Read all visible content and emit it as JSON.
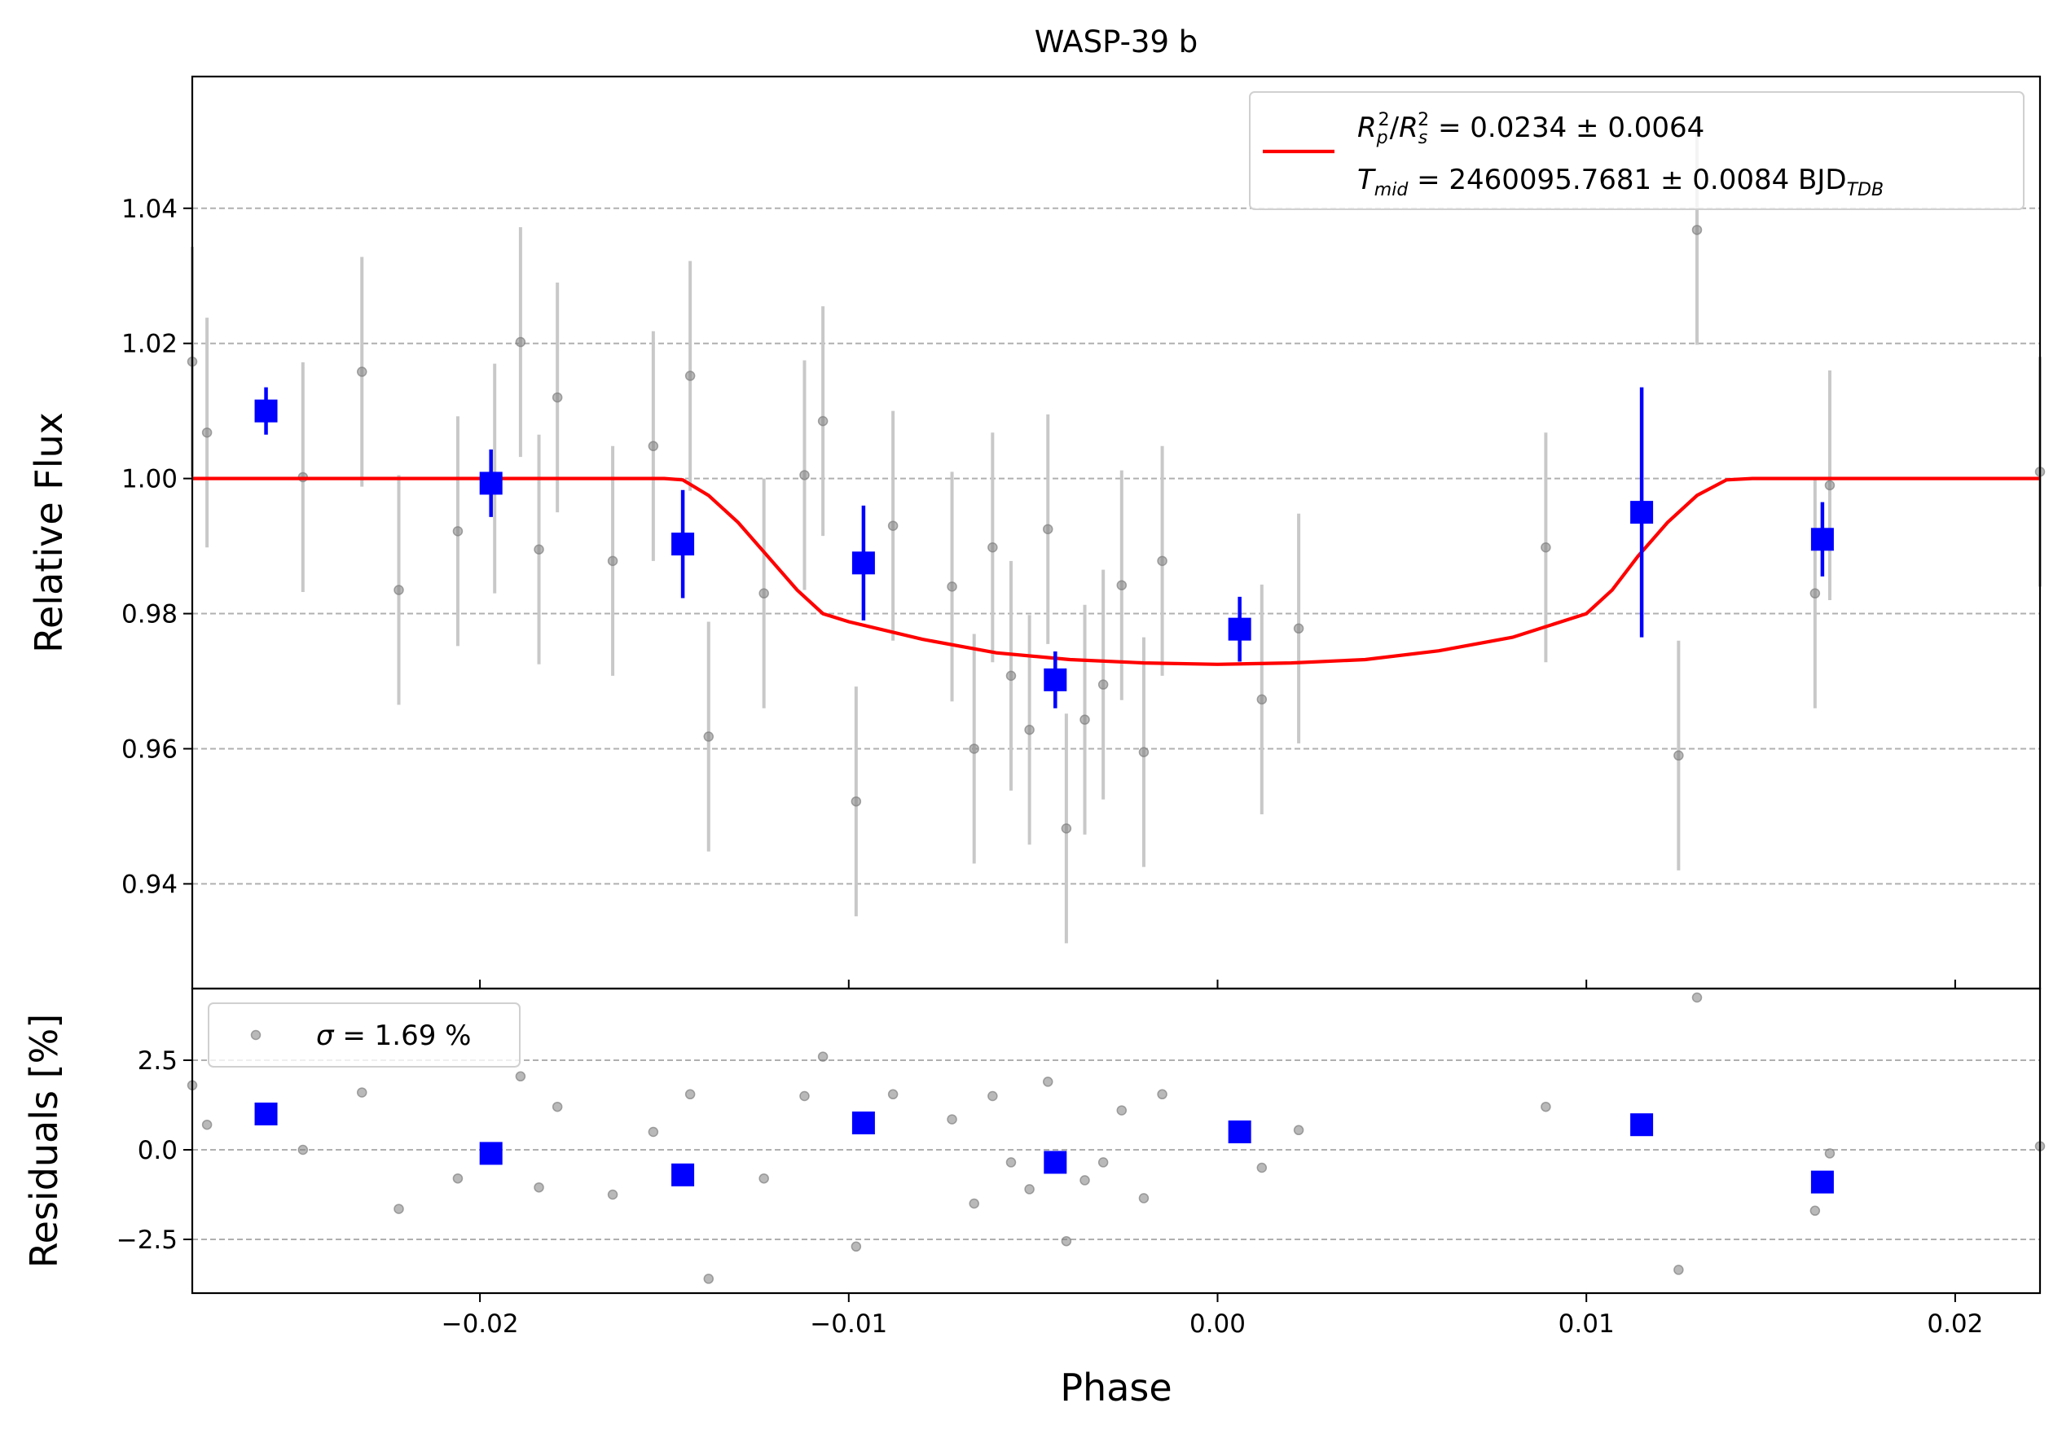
{
  "chart_data": {
    "type": "scatter",
    "title": "WASP-39 b",
    "xlabel": "Phase",
    "xlim": [
      -0.0278,
      0.0223
    ],
    "xticks": [
      -0.02,
      -0.01,
      0.0,
      0.01,
      0.02
    ],
    "xtick_labels": [
      "−0.02",
      "−0.01",
      "0.00",
      "0.01",
      "0.02"
    ],
    "colors": {
      "raw": "#808080",
      "raw_err": "#c8c8c8",
      "binned": "#0000ff",
      "model": "#ff0000",
      "grid": "#b0b0b0"
    },
    "panels": [
      {
        "name": "flux",
        "ylabel": "Relative Flux",
        "ylim": [
          0.9245,
          1.0595
        ],
        "yticks": [
          0.94,
          0.96,
          0.98,
          1.0,
          1.02,
          1.04
        ],
        "ytick_labels": [
          "0.94",
          "0.96",
          "0.98",
          "1.00",
          "1.02",
          "1.04"
        ],
        "grid": true,
        "legend": {
          "position": "top-right",
          "line1": {
            "r": "R",
            "p": "p",
            "sup1": "2",
            "slash": "/",
            "r2": "R",
            "s": "s",
            "sup2": "2",
            "val": " = 0.0234 ± 0.0064"
          },
          "line2": {
            "t": "T",
            "mid": "mid",
            "val": " = 2460095.7681 ± 0.0084 BJD",
            "tdb": "TDB"
          }
        },
        "model": {
          "name": "transit model",
          "x": [
            -0.0278,
            -0.015,
            -0.0145,
            -0.0138,
            -0.013,
            -0.0122,
            -0.0114,
            -0.0107,
            -0.01,
            -0.008,
            -0.006,
            -0.004,
            -0.002,
            0.0,
            0.002,
            0.004,
            0.006,
            0.008,
            0.01,
            0.0107,
            0.0114,
            0.0122,
            0.013,
            0.0138,
            0.0145,
            0.015,
            0.0223
          ],
          "y": [
            1.0,
            1.0,
            0.9998,
            0.9975,
            0.9935,
            0.9885,
            0.9835,
            0.98,
            0.9788,
            0.9762,
            0.9742,
            0.9732,
            0.9727,
            0.9725,
            0.9727,
            0.9732,
            0.9745,
            0.9765,
            0.98,
            0.9835,
            0.9885,
            0.9935,
            0.9975,
            0.9998,
            1.0,
            1.0,
            1.0
          ]
        },
        "raw": {
          "x": [
            -0.0278,
            -0.0274,
            -0.0248,
            -0.0232,
            -0.0222,
            -0.0206,
            -0.0196,
            -0.0189,
            -0.0184,
            -0.0179,
            -0.0164,
            -0.0153,
            -0.0143,
            -0.0138,
            -0.0123,
            -0.0112,
            -0.0107,
            -0.0098,
            -0.0088,
            -0.0072,
            -0.0066,
            -0.0061,
            -0.0056,
            -0.0051,
            -0.0046,
            -0.0041,
            -0.0036,
            -0.0031,
            -0.0026,
            -0.002,
            -0.0015,
            0.0012,
            0.0022,
            0.0089,
            0.0125,
            0.013,
            0.0162,
            0.0166,
            0.0223
          ],
          "y": [
            1.0173,
            1.0068,
            1.0002,
            1.0158,
            0.9835,
            0.9922,
            1.0,
            1.0202,
            0.9895,
            1.012,
            0.9878,
            1.0048,
            1.0152,
            0.9618,
            0.983,
            1.0005,
            1.0085,
            0.9522,
            0.993,
            0.984,
            0.96,
            0.9898,
            0.9708,
            0.9628,
            0.9925,
            0.9482,
            0.9643,
            0.9695,
            0.9842,
            0.9595,
            0.9878,
            0.9673,
            0.9778,
            0.9898,
            0.959,
            1.0368,
            0.983,
            0.999,
            1.001
          ],
          "err": [
            0.017,
            0.017,
            0.017,
            0.017,
            0.017,
            0.017,
            0.017,
            0.017,
            0.017,
            0.017,
            0.017,
            0.017,
            0.017,
            0.017,
            0.017,
            0.017,
            0.017,
            0.017,
            0.017,
            0.017,
            0.017,
            0.017,
            0.017,
            0.017,
            0.017,
            0.017,
            0.017,
            0.017,
            0.017,
            0.017,
            0.017,
            0.017,
            0.017,
            0.017,
            0.017,
            0.017,
            0.017,
            0.017,
            0.017
          ]
        },
        "binned": {
          "x": [
            -0.0258,
            -0.0197,
            -0.0145,
            -0.0096,
            -0.0044,
            0.0006,
            0.0115,
            0.0164
          ],
          "y": [
            1.01,
            0.9993,
            0.9903,
            0.9875,
            0.9702,
            0.9777,
            0.995,
            0.991
          ],
          "err": [
            0.0035,
            0.005,
            0.008,
            0.0085,
            0.0042,
            0.0048,
            0.0185,
            0.0055
          ]
        }
      },
      {
        "name": "residuals",
        "ylabel": "Residuals [%]",
        "ylim": [
          -4.0,
          4.5
        ],
        "yticks": [
          -2.5,
          0.0,
          2.5
        ],
        "ytick_labels": [
          "−2.5",
          "0.0",
          "2.5"
        ],
        "grid": true,
        "legend": {
          "position": "top-left",
          "sigma": "σ",
          "val": " = 1.69 %"
        },
        "raw": {
          "x": [
            -0.0278,
            -0.0274,
            -0.0248,
            -0.0232,
            -0.0222,
            -0.0206,
            -0.0196,
            -0.0189,
            -0.0184,
            -0.0179,
            -0.0164,
            -0.0153,
            -0.0143,
            -0.0138,
            -0.0123,
            -0.0112,
            -0.0107,
            -0.0098,
            -0.0088,
            -0.0072,
            -0.0066,
            -0.0061,
            -0.0056,
            -0.0051,
            -0.0046,
            -0.0041,
            -0.0036,
            -0.0031,
            -0.0026,
            -0.002,
            -0.0015,
            0.0012,
            0.0022,
            0.0089,
            0.0125,
            0.013,
            0.0162,
            0.0166,
            0.0223
          ],
          "y": [
            1.8,
            0.7,
            0.0,
            1.6,
            -1.65,
            -0.8,
            -0.1,
            2.05,
            -1.05,
            1.2,
            -1.25,
            0.5,
            1.55,
            -3.6,
            -0.8,
            1.5,
            2.6,
            -2.7,
            1.55,
            0.85,
            -1.5,
            1.5,
            -0.35,
            -1.1,
            1.9,
            -2.55,
            -0.85,
            -0.35,
            1.1,
            -1.35,
            1.55,
            -0.5,
            0.55,
            1.2,
            -3.35,
            4.25,
            -1.7,
            -0.1,
            0.1
          ]
        },
        "binned": {
          "x": [
            -0.0258,
            -0.0197,
            -0.0145,
            -0.0096,
            -0.0044,
            0.0006,
            0.0115,
            0.0164
          ],
          "y": [
            1.0,
            -0.1,
            -0.7,
            0.75,
            -0.35,
            0.5,
            0.7,
            -0.9
          ]
        }
      }
    ]
  }
}
